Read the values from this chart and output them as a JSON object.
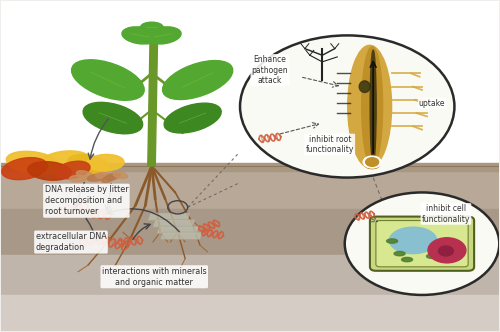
{
  "labels": {
    "dna_release": "DNA release by litter\ndecomposition and\nroot turnover",
    "extracellular": "extracellular DNA\ndegradation",
    "interactions": "interactions with minerals\nand organic matter",
    "enhance": "Enhance\npathogen\nattack",
    "inhibit_root": "inhibit root\nfunctionality",
    "inhibit_cell": "inhibit cell\nfunctionality",
    "uptake": "uptake"
  },
  "sky_color": "#ffffff",
  "ground_colors": [
    "#c0aea0",
    "#b0a090",
    "#c8beb5"
  ],
  "plant_green": "#52a830",
  "plant_dark_green": "#3d8820",
  "plant_vein": "#80c040",
  "stem_color": "#6a9828",
  "root_color": "#8b5a2b",
  "root_light": "#b07840",
  "litter_yellow": "#f0c030",
  "litter_orange": "#cc4010",
  "litter_tan": "#d09050",
  "dna_color": "#d06040",
  "mineral_color": "#c8c8b8",
  "c1x": 0.695,
  "c1y": 0.68,
  "c1r": 0.215,
  "c2x": 0.845,
  "c2y": 0.265,
  "c2r": 0.155,
  "root_fill": "#d4a840",
  "root_inner": "#c08820",
  "root_stele": "#604010",
  "cell_fill": "#d0dc90",
  "cell_vacuole": "#90c8d8",
  "cell_nucleus": "#b83050",
  "cell_edge": "#607030"
}
